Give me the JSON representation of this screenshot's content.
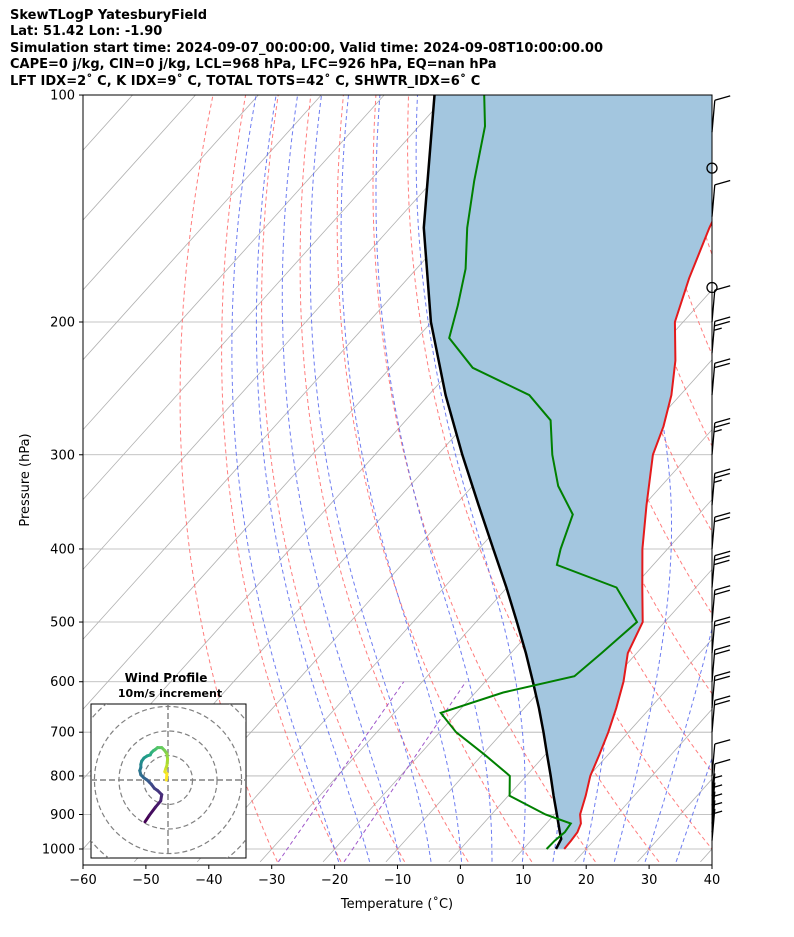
{
  "header": {
    "line1": "SkewTLogP YatesburyField",
    "line2": "Lat: 51.42   Lon: -1.90",
    "line3": "Simulation start time: 2024-09-07_00:00:00, Valid time: 2024-09-08T10:00:00.00",
    "line4": "CAPE=0 j/kg, CIN=0 j/kg, LCL=968 hPa, LFC=926 hPa, EQ=nan hPa",
    "line5": "LFT IDX=2˚ C, K IDX=9˚ C, TOTAL TOTS=42˚ C, SHWTR_IDX=6˚ C"
  },
  "chart_data": {
    "type": "line",
    "subtype": "skew-t log-p diagram",
    "xlabel": "Temperature (˚C)",
    "ylabel": "Pressure (hPa)",
    "xlim": [
      -60,
      40
    ],
    "ylim": [
      1040,
      100
    ],
    "y_scale": "log",
    "x_ticks": [
      -60,
      -50,
      -40,
      -30,
      -20,
      -10,
      0,
      10,
      20,
      30,
      40
    ],
    "x_tick_labels": [
      "−60",
      "−50",
      "−40",
      "−30",
      "−20",
      "−10",
      "0",
      "10",
      "20",
      "30",
      "40"
    ],
    "y_ticks": [
      1000,
      900,
      800,
      700,
      600,
      500,
      400,
      300,
      200,
      100
    ],
    "y_tick_labels": [
      "1000",
      "900",
      "800",
      "700",
      "600",
      "500",
      "400",
      "300",
      "200",
      "100"
    ],
    "grid": true,
    "colors": {
      "temperature": "#e41a1c",
      "dewpoint": "#008000",
      "parcel": "#000000",
      "cape_fill": "#a3c6df",
      "dry_adiabat": "#ff6666",
      "moist_adiabat": "#5566ee",
      "mixing_ratio": "#9e55c9",
      "isotherm": "#b0b0b0"
    },
    "series": [
      {
        "id": "temperature",
        "points": [
          [
            1000,
            16.5
          ],
          [
            975,
            16.4
          ],
          [
            950,
            16.2
          ],
          [
            925,
            15.5
          ],
          [
            900,
            14.1
          ],
          [
            850,
            12.3
          ],
          [
            800,
            10.2
          ],
          [
            750,
            8.6
          ],
          [
            700,
            6.8
          ],
          [
            650,
            4.6
          ],
          [
            600,
            2.0
          ],
          [
            550,
            -1.4
          ],
          [
            500,
            -3.5
          ],
          [
            450,
            -8.5
          ],
          [
            400,
            -14.0
          ],
          [
            350,
            -19.6
          ],
          [
            300,
            -25.8
          ],
          [
            275,
            -28.2
          ],
          [
            250,
            -31.4
          ],
          [
            225,
            -35.7
          ],
          [
            200,
            -41.3
          ],
          [
            175,
            -45.3
          ],
          [
            150,
            -49.3
          ],
          [
            125,
            -53.3
          ],
          [
            110,
            -56.6
          ],
          [
            100,
            -59.6
          ]
        ]
      },
      {
        "id": "dewpoint",
        "points": [
          [
            1000,
            13.7
          ],
          [
            975,
            13.8
          ],
          [
            950,
            14.2
          ],
          [
            925,
            13.9
          ],
          [
            900,
            8.6
          ],
          [
            850,
            0.2
          ],
          [
            800,
            -2.6
          ],
          [
            750,
            -9.6
          ],
          [
            700,
            -17.4
          ],
          [
            660,
            -22.6
          ],
          [
            620,
            -15.6
          ],
          [
            590,
            -6.6
          ],
          [
            550,
            -5.6
          ],
          [
            500,
            -4.4
          ],
          [
            450,
            -12.6
          ],
          [
            420,
            -25.3
          ],
          [
            400,
            -27.0
          ],
          [
            360,
            -30.0
          ],
          [
            330,
            -36.4
          ],
          [
            300,
            -41.8
          ],
          [
            270,
            -47.0
          ],
          [
            250,
            -54.0
          ],
          [
            230,
            -66.9
          ],
          [
            210,
            -74.9
          ],
          [
            190,
            -78.2
          ],
          [
            170,
            -82.2
          ],
          [
            150,
            -87.8
          ],
          [
            130,
            -93.4
          ],
          [
            110,
            -99.5
          ],
          [
            100,
            -104.1
          ]
        ]
      },
      {
        "id": "parcel",
        "points": [
          [
            1000,
            15.2
          ],
          [
            970,
            14.6
          ],
          [
            950,
            13.4
          ],
          [
            900,
            10.4
          ],
          [
            850,
            7.2
          ],
          [
            800,
            3.9
          ],
          [
            750,
            0.3
          ],
          [
            700,
            -3.5
          ],
          [
            650,
            -7.7
          ],
          [
            600,
            -12.4
          ],
          [
            550,
            -17.6
          ],
          [
            500,
            -23.5
          ],
          [
            450,
            -30.1
          ],
          [
            400,
            -37.7
          ],
          [
            350,
            -46.3
          ],
          [
            300,
            -56.1
          ],
          [
            250,
            -67.3
          ],
          [
            200,
            -80.1
          ],
          [
            150,
            -94.7
          ],
          [
            100,
            -112.0
          ]
        ]
      }
    ],
    "wind_barbs": [
      {
        "p": 975,
        "speed_kt": 5
      },
      {
        "p": 950,
        "speed_kt": 5
      },
      {
        "p": 925,
        "speed_kt": 5
      },
      {
        "p": 900,
        "speed_kt": 5
      },
      {
        "p": 875,
        "speed_kt": 5
      },
      {
        "p": 850,
        "speed_kt": 10
      },
      {
        "p": 800,
        "speed_kt": 10
      },
      {
        "p": 700,
        "speed_kt": 20
      },
      {
        "p": 650,
        "speed_kt": 20
      },
      {
        "p": 600,
        "speed_kt": 20
      },
      {
        "p": 550,
        "speed_kt": 20
      },
      {
        "p": 500,
        "speed_kt": 20
      },
      {
        "p": 450,
        "speed_kt": 30
      },
      {
        "p": 400,
        "speed_kt": 20
      },
      {
        "p": 350,
        "speed_kt": 25
      },
      {
        "p": 300,
        "speed_kt": 25
      },
      {
        "p": 250,
        "speed_kt": 20
      },
      {
        "p": 220,
        "speed_kt": 25
      },
      {
        "p": 200,
        "speed_kt": 10
      },
      {
        "p": 180,
        "speed_kt": 0
      },
      {
        "p": 145,
        "speed_kt": 10
      },
      {
        "p": 125,
        "speed_kt": 0
      },
      {
        "p": 112,
        "speed_kt": 10
      }
    ],
    "hodograph": {
      "title": "Wind Profile",
      "subtitle": "10m/s increment",
      "ring_step_ms": 10,
      "colormap": "viridis",
      "points": [
        [
          11,
          -20
        ],
        [
          9,
          -17
        ],
        [
          6,
          -13
        ],
        [
          3.5,
          -10
        ],
        [
          3,
          -7
        ],
        [
          5,
          -5
        ],
        [
          6.5,
          -4
        ],
        [
          8,
          -2
        ],
        [
          9,
          -1
        ],
        [
          10,
          0
        ],
        [
          11.5,
          1
        ],
        [
          13,
          2.5
        ],
        [
          13.5,
          4.5
        ],
        [
          13,
          6
        ],
        [
          13,
          7.5
        ],
        [
          12.6,
          9
        ],
        [
          11.5,
          10.5
        ],
        [
          10,
          11.5
        ],
        [
          8.5,
          12
        ],
        [
          8,
          13
        ],
        [
          7,
          14
        ],
        [
          6.2,
          14.5
        ],
        [
          5,
          15.5
        ],
        [
          3,
          15.5
        ],
        [
          1.5,
          14
        ],
        [
          0.5,
          12.5
        ],
        [
          0.2,
          10
        ],
        [
          0.5,
          7
        ],
        [
          1.2,
          5
        ],
        [
          1.5,
          4
        ],
        [
          0.5,
          3
        ],
        [
          0.8,
          0
        ]
      ]
    }
  }
}
